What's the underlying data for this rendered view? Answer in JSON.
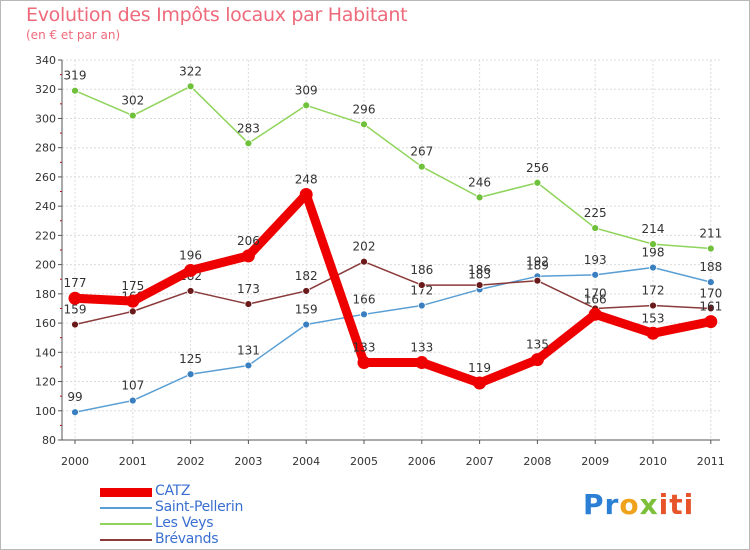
{
  "chart_data": {
    "type": "line",
    "title": "Evolution des Impôts locaux par Habitant",
    "subtitle": "(en € et par an)",
    "xlabel": "",
    "ylabel": "",
    "ylim": [
      80,
      340
    ],
    "y_ticks": [
      80,
      100,
      120,
      140,
      160,
      180,
      200,
      220,
      240,
      260,
      280,
      300,
      320,
      340
    ],
    "categories": [
      "2000",
      "2001",
      "2002",
      "2003",
      "2004",
      "2005",
      "2006",
      "2007",
      "2008",
      "2009",
      "2010",
      "2011"
    ],
    "grid": true,
    "legend_position": "bottom-left",
    "series": [
      {
        "name": "Saint-Pellerin",
        "color": "#5a9fd4",
        "marker": "#3a7fc0",
        "values": [
          99,
          107,
          125,
          131,
          159,
          166,
          172,
          183,
          192,
          193,
          198,
          188
        ],
        "labels": [
          "99",
          "107",
          "125",
          "131",
          "159",
          "166",
          "172",
          "183",
          "192",
          "193",
          "198",
          "188"
        ]
      },
      {
        "name": "Les Veys",
        "color": "#8fd45a",
        "marker": "#6fc03a",
        "values": [
          319,
          302,
          322,
          283,
          309,
          296,
          267,
          246,
          256,
          225,
          214,
          211
        ],
        "labels": [
          "319",
          "302",
          "322",
          "283",
          "309",
          "296",
          "267",
          "246",
          "256",
          "225",
          "214",
          "211"
        ]
      },
      {
        "name": "Brévands",
        "color": "#8a3a3a",
        "marker": "#6a1a1a",
        "values": [
          159,
          168,
          182,
          173,
          182,
          202,
          186,
          186,
          189,
          170,
          172,
          170
        ],
        "labels": [
          "159",
          "168",
          "182",
          "173",
          "182",
          "202",
          "186",
          "186",
          "189",
          "170",
          "172",
          "170"
        ]
      },
      {
        "name": "CATZ",
        "color": "#ee0000",
        "marker": "#ee0000",
        "values": [
          177,
          175,
          196,
          206,
          248,
          133,
          133,
          119,
          135,
          166,
          153,
          161
        ],
        "labels": [
          "177",
          "175",
          "196",
          "206",
          "248",
          "133",
          "133",
          "119",
          "135",
          "166",
          "153",
          "161"
        ]
      }
    ]
  },
  "legend": {
    "items": [
      {
        "label": "CATZ",
        "color": "#ee0000"
      },
      {
        "label": "Saint-Pellerin",
        "color": "#5a9fd4"
      },
      {
        "label": "Les Veys",
        "color": "#8fd45a"
      },
      {
        "label": "Brévands",
        "color": "#8a3a3a"
      }
    ]
  },
  "logo": {
    "p1": "Pr",
    "p2": "o",
    "p3": "x",
    "p4": "iti"
  }
}
